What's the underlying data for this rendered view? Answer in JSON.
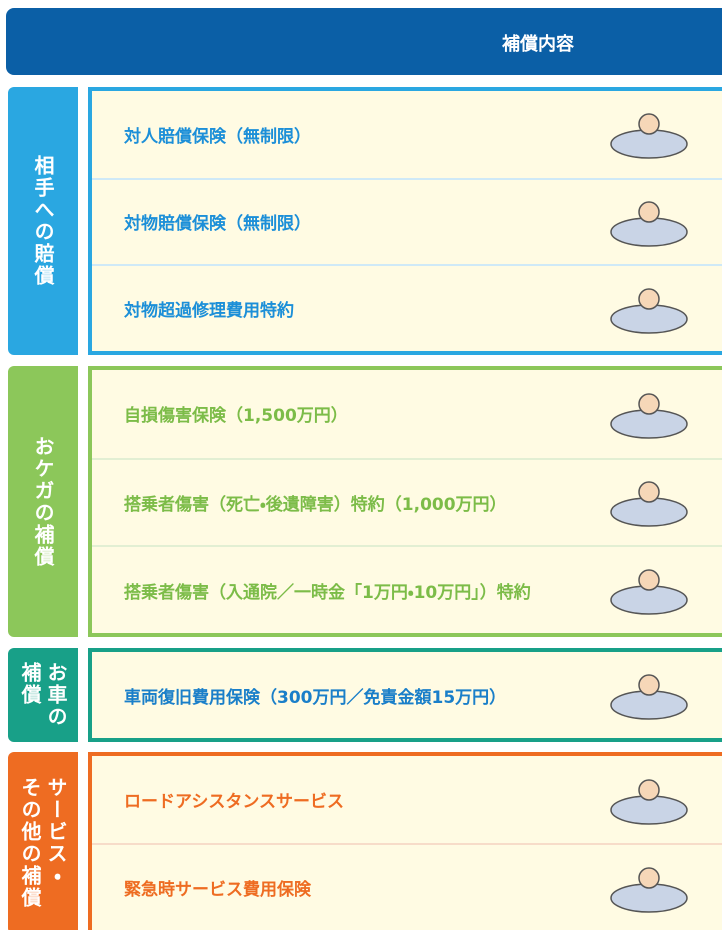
{
  "header": {
    "title": "補償内容"
  },
  "sections": [
    {
      "label": [
        "相手への賠償"
      ],
      "rows": [
        "対人賠償保険（無制限）",
        "対物賠償保険（無制限）",
        "対物超過修理費用特約"
      ]
    },
    {
      "label": [
        "おケガの補償"
      ],
      "rows": [
        "自損傷害保険（1,500万円）",
        "搭乗者傷害（死亡・後遺障害）特約（1,000万円）",
        "搭乗者傷害（入通院／一時金「1万円・10万円」）特約"
      ]
    },
    {
      "label": [
        "お車の",
        "補償"
      ],
      "rows": [
        "車両復旧費用保険（300万円／免責金額15万円）"
      ]
    },
    {
      "label": [
        "サービス・",
        "その他の補償"
      ],
      "rows": [
        "ロードアシスタンスサービス",
        "緊急時サービス費用保険"
      ]
    }
  ]
}
